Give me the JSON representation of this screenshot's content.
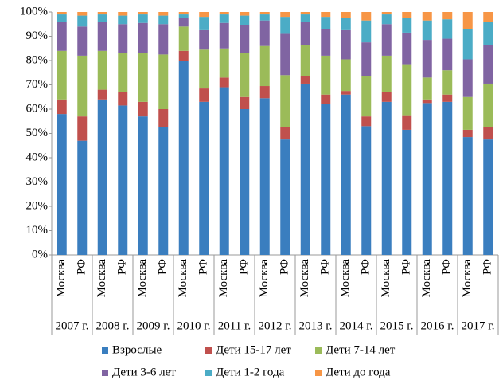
{
  "chart_data": {
    "type": "stacked_bar_100",
    "categories": [
      "Москва",
      "РФ",
      "Москва",
      "РФ",
      "Москва",
      "РФ",
      "Москва",
      "РФ",
      "Москва",
      "РФ",
      "Москва",
      "РФ",
      "Москва",
      "РФ",
      "Москва",
      "РФ",
      "Москва",
      "РФ",
      "Москва",
      "РФ",
      "Москва",
      "РФ"
    ],
    "groups": [
      "2007 г.",
      "2008 г.",
      "2009 г.",
      "2010 г.",
      "2011 г.",
      "2012 г.",
      "2013 г.",
      "2014 г.",
      "2015 г.",
      "2016 г.",
      "2017 г."
    ],
    "series": [
      {
        "name": "Взрослые",
        "color": "#3a7ebf",
        "values": [
          58,
          47,
          64,
          61.5,
          57,
          52.5,
          80,
          63,
          69,
          60,
          64.5,
          47.5,
          70.5,
          62,
          66,
          53,
          63,
          51.5,
          62.5,
          63,
          48.5,
          47.5
        ]
      },
      {
        "name": "Дети 15-17 лет",
        "color": "#c0504d",
        "values": [
          6,
          10,
          4,
          5.5,
          6,
          7.5,
          4,
          5.5,
          4,
          5,
          5,
          5,
          3,
          4,
          1.5,
          4,
          4,
          6,
          1.5,
          3,
          3,
          5
        ]
      },
      {
        "name": "Дети 7-14 лет",
        "color": "#9bbb59",
        "values": [
          20,
          25,
          16,
          16,
          20,
          22.5,
          10,
          16,
          12,
          18,
          16.5,
          21.5,
          13,
          16,
          13,
          16.5,
          15,
          21,
          9,
          10,
          13.5,
          18
        ]
      },
      {
        "name": "Дети 3-6 лет",
        "color": "#8064a2",
        "values": [
          12,
          12,
          12,
          12,
          12.5,
          12.5,
          3.5,
          8,
          10.5,
          11.5,
          10.5,
          17,
          9.5,
          11,
          12,
          14,
          13,
          13,
          15.5,
          13,
          15.5,
          16
        ]
      },
      {
        "name": "Дети 1-2 года",
        "color": "#4bacc6",
        "values": [
          3,
          4.5,
          3,
          3.5,
          3.5,
          3.5,
          1.5,
          5.5,
          3.5,
          4,
          2.5,
          7,
          3,
          5,
          5,
          9,
          4,
          6,
          8,
          8,
          12.5,
          9.5
        ]
      },
      {
        "name": "Дети до года",
        "color": "#f79646",
        "values": [
          1,
          1.5,
          1,
          1.5,
          1,
          1.5,
          1,
          2,
          1,
          1.5,
          1,
          2,
          1,
          2,
          2.5,
          3.5,
          1,
          2.5,
          3.5,
          3,
          7,
          4
        ]
      }
    ],
    "ylim": [
      0,
      100
    ],
    "yticks": [
      {
        "value": 0,
        "label": "0%"
      },
      {
        "value": 10,
        "label": "10%"
      },
      {
        "value": 20,
        "label": "20%"
      },
      {
        "value": 30,
        "label": "30%"
      },
      {
        "value": 40,
        "label": "40%"
      },
      {
        "value": 50,
        "label": "50%"
      },
      {
        "value": 60,
        "label": "60%"
      },
      {
        "value": 70,
        "label": "70%"
      },
      {
        "value": 80,
        "label": "80%"
      },
      {
        "value": 90,
        "label": "90%"
      },
      {
        "value": 100,
        "label": "100%"
      }
    ],
    "grid": false,
    "legend": "bottom"
  }
}
